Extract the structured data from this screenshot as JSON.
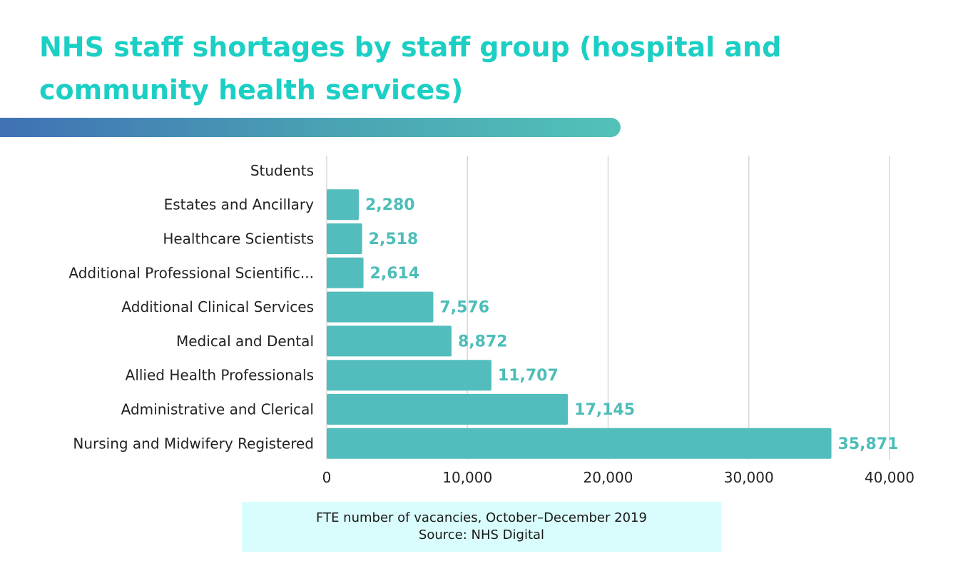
{
  "header": {
    "title": "NHS staff shortages by staff group (hospital and community health services)"
  },
  "footer": {
    "note_line1": "FTE number of vacancies, October–December 2019",
    "note_line2": "Source: NHS Digital"
  },
  "colors": {
    "title": "#1ccfc4",
    "bar": "#52bdbc",
    "value_label": "#4dbdb8",
    "gridline": "#d9d9d9",
    "source_box": "#d9fdfc"
  },
  "chart_data": {
    "type": "bar",
    "orientation": "horizontal",
    "title": "NHS staff shortages by staff group (hospital and community health services)",
    "xlabel": "FTE number of vacancies, October–December 2019",
    "ylabel": "",
    "xlim": [
      0,
      40000
    ],
    "x_ticks": [
      0,
      10000,
      20000,
      30000,
      40000
    ],
    "x_tick_labels": [
      "0",
      "10,000",
      "20,000",
      "30,000",
      "40,000"
    ],
    "grid": true,
    "categories": [
      "Students",
      "Estates and Ancillary",
      "Healthcare Scientists",
      "Additional Professional Scientific...",
      "Additional Clinical Services",
      "Medical and Dental",
      "Allied Health Professionals",
      "Administrative and Clerical",
      "Nursing and Midwifery Registered"
    ],
    "values": [
      null,
      2280,
      2518,
      2614,
      7576,
      8872,
      11707,
      17145,
      35871
    ],
    "value_labels": [
      "",
      "2,280",
      "2,518",
      "2,614",
      "7,576",
      "8,872",
      "11,707",
      "17,145",
      "35,871"
    ],
    "source": "Source: NHS Digital"
  }
}
